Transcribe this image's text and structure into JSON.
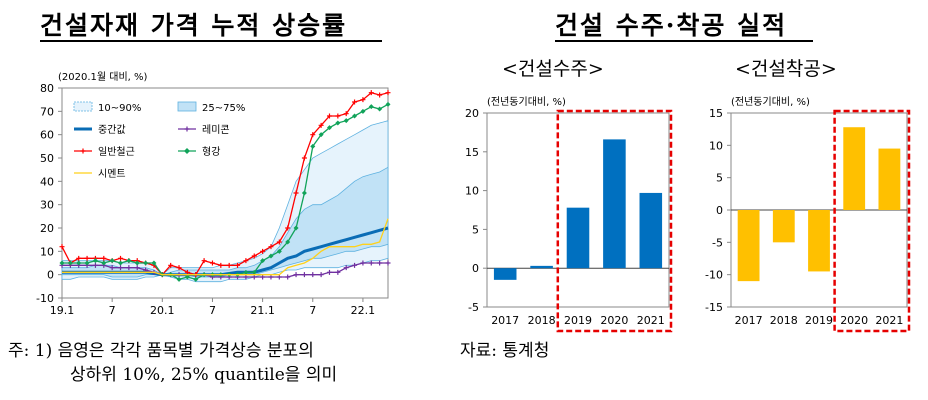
{
  "left_title": "건설자재 가격 누적 상승률",
  "right_title": "건설 수주·착공 실적",
  "sub_orders": "<건설수주>",
  "sub_starts": "<건설착공>",
  "note_line1": "주: 1) 음영은 각각 품목별 가격상승 분포의",
  "note_line2": "상하위 10%, 25% quantile을 의미",
  "source": "자료: 통계청",
  "colors": {
    "band_10_90": "#e6f3fc",
    "band_25_75": "#c1e2f6",
    "band_edge": "#5fb2e0",
    "median": "#0a6cb5",
    "remicon": "#7030a0",
    "rebar": "#ff0000",
    "steel": "#11a35a",
    "cement": "#ffd11a",
    "orders_bar": "#0070c0",
    "starts_bar": "#ffc000",
    "highlight": "#e60000"
  },
  "chart_data": [
    {
      "type": "line",
      "unit": "(2020.1월 대비, %)",
      "ylim": [
        -10,
        80
      ],
      "yticks": [
        -10,
        0,
        10,
        20,
        30,
        40,
        50,
        60,
        70,
        80
      ],
      "xticks": [
        {
          "label": "19.1",
          "month": 0
        },
        {
          "label": "7",
          "month": 6
        },
        {
          "label": "20.1",
          "month": 12
        },
        {
          "label": "7",
          "month": 18
        },
        {
          "label": "21.1",
          "month": 24
        },
        {
          "label": "7",
          "month": 30
        },
        {
          "label": "22.1",
          "month": 36
        }
      ],
      "x_months": 39,
      "legend": {
        "band_10_90": "10~90%",
        "band_25_75": "25~75%",
        "median": "중간값",
        "remicon": "레미콘",
        "rebar": "일반철근",
        "steel": "형강",
        "cement": "시멘트"
      },
      "bands": {
        "p10": [
          -2,
          -2,
          -1,
          -1,
          -1,
          -1,
          -2,
          -2,
          -2,
          -2,
          -1,
          -1,
          0,
          -1,
          -2,
          -2,
          -3,
          -3,
          -3,
          -3,
          -2,
          -2,
          -2,
          -1,
          0,
          0,
          1,
          2,
          2,
          3,
          3,
          3,
          3,
          3,
          4,
          4,
          5,
          6,
          6,
          7
        ],
        "p25": [
          0,
          0,
          0,
          0,
          0,
          0,
          -1,
          -1,
          -1,
          -1,
          0,
          0,
          0,
          0,
          0,
          0,
          -1,
          -1,
          -1,
          -1,
          0,
          0,
          0,
          0,
          1,
          2,
          3,
          4,
          5,
          6,
          7,
          7,
          8,
          9,
          10,
          10,
          11,
          12,
          12,
          13
        ],
        "p75": [
          3,
          3,
          3,
          3,
          4,
          4,
          4,
          3,
          3,
          3,
          3,
          2,
          0,
          1,
          2,
          2,
          2,
          2,
          2,
          2,
          2,
          3,
          3,
          4,
          6,
          8,
          12,
          18,
          24,
          28,
          30,
          30,
          32,
          34,
          37,
          40,
          42,
          43,
          44,
          46
        ],
        "p90": [
          6,
          6,
          6,
          6,
          6,
          6,
          6,
          5,
          5,
          5,
          5,
          4,
          0,
          3,
          3,
          3,
          3,
          3,
          3,
          4,
          4,
          5,
          6,
          7,
          9,
          12,
          20,
          30,
          40,
          45,
          50,
          52,
          54,
          56,
          58,
          60,
          62,
          64,
          65,
          66
        ]
      },
      "series": [
        {
          "name": "중간값",
          "key": "median",
          "values": [
            1,
            1,
            1,
            1,
            1,
            1,
            1,
            1,
            1,
            1,
            1,
            0.5,
            0,
            0,
            0,
            0,
            0,
            0,
            0,
            0,
            0.5,
            1,
            1,
            1,
            2,
            3,
            5,
            7,
            8,
            10,
            11,
            12,
            13,
            14,
            15,
            16,
            17,
            18,
            19,
            20
          ]
        },
        {
          "name": "레미콘",
          "key": "remicon",
          "values": [
            4,
            4,
            4,
            4,
            4,
            4,
            3,
            3,
            3,
            3,
            2,
            1,
            0,
            0,
            0,
            0,
            0,
            0,
            -1,
            -1,
            -1,
            -1,
            -1,
            -1,
            -1,
            -1,
            -1,
            -1,
            0,
            0,
            0,
            0,
            1,
            1,
            3,
            4,
            5,
            5,
            5,
            5
          ]
        },
        {
          "name": "일반철근",
          "key": "rebar",
          "values": [
            12,
            5,
            7,
            7,
            7,
            7,
            6,
            7,
            6,
            6,
            5,
            4,
            0,
            4,
            3,
            1,
            0,
            6,
            5,
            4,
            4,
            4,
            6,
            8,
            10,
            12,
            14,
            20,
            35,
            50,
            60,
            64,
            68,
            68,
            69,
            74,
            75,
            78,
            77,
            78
          ]
        },
        {
          "name": "형강",
          "key": "steel",
          "values": [
            5,
            5,
            5,
            5,
            6,
            5,
            6,
            5,
            6,
            5,
            5,
            5,
            0,
            0,
            -2,
            -1,
            -2,
            0,
            0,
            0,
            0,
            0,
            1,
            1,
            6,
            8,
            10,
            14,
            20,
            35,
            55,
            60,
            63,
            65,
            66,
            68,
            70,
            72,
            71,
            73
          ]
        },
        {
          "name": "시멘트",
          "key": "cement",
          "values": [
            1,
            1,
            1,
            1,
            1,
            1,
            1,
            1,
            1,
            1,
            1,
            1,
            0,
            0,
            0,
            0,
            0,
            0,
            0,
            0,
            0,
            0,
            0,
            0,
            0,
            0,
            0,
            3,
            4,
            5,
            7,
            10,
            12,
            12,
            12,
            12,
            13,
            13,
            14,
            24
          ]
        }
      ]
    },
    {
      "type": "bar",
      "title": "<건설수주>",
      "unit": "(전년동기대비, %)",
      "ylim": [
        -5,
        20
      ],
      "yticks": [
        -5,
        0,
        5,
        10,
        15,
        20
      ],
      "categories": [
        "2017",
        "2018",
        "2019",
        "2020",
        "2021"
      ],
      "values": [
        -1.5,
        0.3,
        7.8,
        16.6,
        9.7
      ],
      "highlight": [
        "2019",
        "2020",
        "2021"
      ]
    },
    {
      "type": "bar",
      "title": "<건설착공>",
      "unit": "(전년동기대비, %)",
      "ylim": [
        -15,
        15
      ],
      "yticks": [
        -15,
        -10,
        -5,
        0,
        5,
        10,
        15
      ],
      "categories": [
        "2017",
        "2018",
        "2019",
        "2020",
        "2021"
      ],
      "values": [
        -11.0,
        -5.0,
        -9.5,
        12.8,
        9.5
      ],
      "highlight": [
        "2020",
        "2021"
      ]
    }
  ]
}
